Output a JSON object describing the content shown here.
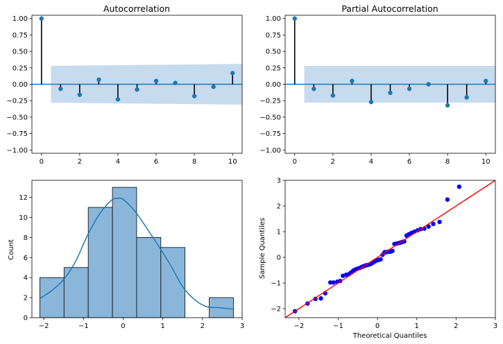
{
  "chart_data": [
    {
      "type": "stem",
      "title": "Autocorrelation",
      "xlim": [
        -0.5,
        10.5
      ],
      "ylim": [
        -1.05,
        1.05
      ],
      "xticks": [
        0,
        2,
        4,
        6,
        8,
        10
      ],
      "yticks": [
        1.0,
        0.75,
        0.5,
        0.25,
        0.0,
        -0.25,
        -0.5,
        -0.75,
        -1.0
      ],
      "ytick_labels": [
        "1.00",
        "0.75",
        "0.50",
        "0.25",
        "0.00",
        "−0.25",
        "−0.50",
        "−0.75",
        "−1.00"
      ],
      "xtick_labels": [
        "0",
        "2",
        "4",
        "6",
        "8",
        "10"
      ],
      "x": [
        0,
        1,
        2,
        3,
        4,
        5,
        6,
        7,
        8,
        9,
        10
      ],
      "values": [
        1.0,
        -0.07,
        -0.16,
        0.07,
        -0.23,
        -0.08,
        0.05,
        0.02,
        -0.18,
        -0.04,
        0.17
      ],
      "confidence_band": {
        "x": [
          0.5,
          10.5
        ],
        "upper": [
          0.28,
          0.31
        ],
        "lower": [
          -0.28,
          -0.31
        ]
      },
      "color": "#1f77b4",
      "band_color": "#c6dbee"
    },
    {
      "type": "stem",
      "title": "Partial Autocorrelation",
      "xlim": [
        -0.5,
        10.5
      ],
      "ylim": [
        -1.05,
        1.05
      ],
      "xticks": [
        0,
        2,
        4,
        6,
        8,
        10
      ],
      "yticks": [
        1.0,
        0.75,
        0.5,
        0.25,
        0.0,
        -0.25,
        -0.5,
        -0.75,
        -1.0
      ],
      "ytick_labels": [
        "1.00",
        "0.75",
        "0.50",
        "0.25",
        "0.00",
        "−0.25",
        "−0.50",
        "−0.75",
        "−1.00"
      ],
      "xtick_labels": [
        "0",
        "2",
        "4",
        "6",
        "8",
        "10"
      ],
      "x": [
        0,
        1,
        2,
        3,
        4,
        5,
        6,
        7,
        8,
        9,
        10
      ],
      "values": [
        1.0,
        -0.07,
        -0.17,
        0.05,
        -0.27,
        -0.13,
        -0.07,
        0.0,
        -0.32,
        -0.2,
        0.05
      ],
      "confidence_band": {
        "x": [
          0.5,
          10.5
        ],
        "upper": [
          0.28,
          0.28
        ],
        "lower": [
          -0.28,
          -0.28
        ]
      },
      "color": "#1f77b4",
      "band_color": "#c6dbee"
    },
    {
      "type": "histogram",
      "ylabel": "Count",
      "xlim": [
        -2.3,
        3.0
      ],
      "ylim": [
        0,
        13.7
      ],
      "xticks": [
        -2,
        -1,
        0,
        1,
        2,
        3
      ],
      "xtick_labels": [
        "−2",
        "−1",
        "0",
        "1",
        "2",
        "3"
      ],
      "yticks": [
        0,
        2,
        4,
        6,
        8,
        10,
        12
      ],
      "ytick_labels": [
        "0",
        "2",
        "4",
        "6",
        "8",
        "10",
        "12"
      ],
      "bin_edges": [
        -2.1,
        -1.49,
        -0.88,
        -0.27,
        0.34,
        0.95,
        1.56,
        2.17,
        2.78
      ],
      "counts": [
        4,
        5,
        11,
        13,
        8,
        7,
        0,
        2
      ],
      "kde": {
        "x": [
          -2.1,
          -1.8,
          -1.5,
          -1.2,
          -0.9,
          -0.6,
          -0.3,
          -0.15,
          0.0,
          0.3,
          0.6,
          0.9,
          1.2,
          1.5,
          1.8,
          2.1,
          2.4,
          2.78
        ],
        "y": [
          1.9,
          2.7,
          3.8,
          5.6,
          8.2,
          10.3,
          11.7,
          11.9,
          11.8,
          10.6,
          8.9,
          7.1,
          5.2,
          3.1,
          1.8,
          1.1,
          1.0,
          0.85
        ]
      },
      "bar_color": "#8ab7d9",
      "kde_color": "#1f77b4"
    },
    {
      "type": "scatter",
      "xlabel": "Theoretical Quantiles",
      "ylabel": "Sample Quantiles",
      "xlim": [
        -2.35,
        3.0
      ],
      "ylim": [
        -2.35,
        3.0
      ],
      "xticks": [
        -2,
        -1,
        0,
        1,
        2,
        3
      ],
      "xtick_labels": [
        "−2",
        "−1",
        "0",
        "1",
        "2",
        "3"
      ],
      "yticks": [
        -2,
        -1,
        0,
        1,
        2,
        3
      ],
      "ytick_labels": [
        "−2",
        "−1",
        "0",
        "1",
        "2",
        "3"
      ],
      "x": [
        -2.1,
        -1.78,
        -1.58,
        -1.44,
        -1.33,
        -1.2,
        -1.12,
        -1.02,
        -0.95,
        -0.88,
        -0.8,
        -0.73,
        -0.68,
        -0.62,
        -0.57,
        -0.52,
        -0.46,
        -0.41,
        -0.36,
        -0.31,
        -0.26,
        -0.21,
        -0.16,
        -0.11,
        -0.06,
        -0.02,
        0.03,
        0.08,
        0.13,
        0.18,
        0.23,
        0.28,
        0.33,
        0.38,
        0.43,
        0.48,
        0.53,
        0.58,
        0.63,
        0.68,
        0.74,
        0.8,
        0.87,
        0.94,
        1.02,
        1.1,
        1.19,
        1.3,
        1.42,
        1.58,
        1.78,
        2.08
      ],
      "y": [
        -2.1,
        -1.8,
        -1.62,
        -1.6,
        -1.4,
        -0.98,
        -0.98,
        -0.95,
        -0.92,
        -0.72,
        -0.68,
        -0.66,
        -0.6,
        -0.52,
        -0.48,
        -0.45,
        -0.42,
        -0.38,
        -0.35,
        -0.32,
        -0.3,
        -0.28,
        -0.25,
        -0.2,
        -0.15,
        -0.12,
        -0.1,
        -0.08,
        0.1,
        0.2,
        0.2,
        0.22,
        0.22,
        0.25,
        0.52,
        0.53,
        0.55,
        0.57,
        0.6,
        0.62,
        0.85,
        0.9,
        0.95,
        1.0,
        1.05,
        1.1,
        1.12,
        1.2,
        1.3,
        1.38,
        2.25,
        2.75
      ],
      "ref_line": {
        "x": [
          -2.35,
          3.0
        ],
        "y": [
          -2.35,
          3.0
        ]
      },
      "point_color": "#0000ff",
      "line_color": "#ff0000"
    }
  ]
}
